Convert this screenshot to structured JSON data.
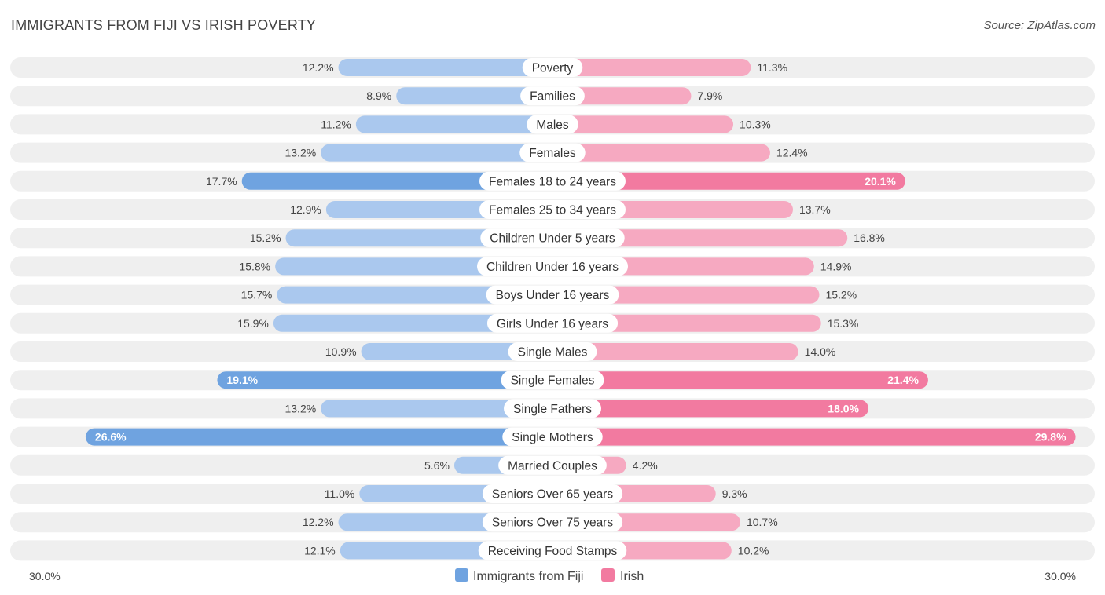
{
  "title": "IMMIGRANTS FROM FIJI VS IRISH POVERTY",
  "source": "Source: ZipAtlas.com",
  "colors": {
    "fiji": "#6fa3e0",
    "fiji_light": "#aac8ee",
    "irish": "#f27aa0",
    "irish_light": "#f6a9c1",
    "track": "#efefef"
  },
  "chart_data": {
    "type": "bar",
    "orientation": "diverging-horizontal",
    "title": "IMMIGRANTS FROM FIJI VS IRISH POVERTY",
    "categories": [
      "Poverty",
      "Families",
      "Males",
      "Females",
      "Females 18 to 24 years",
      "Females 25 to 34 years",
      "Children Under 5 years",
      "Children Under 16 years",
      "Boys Under 16 years",
      "Girls Under 16 years",
      "Single Males",
      "Single Females",
      "Single Fathers",
      "Single Mothers",
      "Married Couples",
      "Seniors Over 65 years",
      "Seniors Over 75 years",
      "Receiving Food Stamps"
    ],
    "series": [
      {
        "name": "Immigrants from Fiji",
        "side": "left",
        "values": [
          12.2,
          8.9,
          11.2,
          13.2,
          17.7,
          12.9,
          15.2,
          15.8,
          15.7,
          15.9,
          10.9,
          19.1,
          13.2,
          26.6,
          5.6,
          11.0,
          12.2,
          12.1
        ],
        "labels": [
          "12.2%",
          "8.9%",
          "11.2%",
          "13.2%",
          "17.7%",
          "12.9%",
          "15.2%",
          "15.8%",
          "15.7%",
          "15.9%",
          "10.9%",
          "19.1%",
          "13.2%",
          "26.6%",
          "5.6%",
          "11.0%",
          "12.2%",
          "12.1%"
        ]
      },
      {
        "name": "Irish",
        "side": "right",
        "values": [
          11.3,
          7.9,
          10.3,
          12.4,
          20.1,
          13.7,
          16.8,
          14.9,
          15.2,
          15.3,
          14.0,
          21.4,
          18.0,
          29.8,
          4.2,
          9.3,
          10.7,
          10.2
        ],
        "labels": [
          "11.3%",
          "7.9%",
          "10.3%",
          "12.4%",
          "20.1%",
          "13.7%",
          "16.8%",
          "14.9%",
          "15.2%",
          "15.3%",
          "14.0%",
          "21.4%",
          "18.0%",
          "29.8%",
          "4.2%",
          "9.3%",
          "10.7%",
          "10.2%"
        ]
      }
    ],
    "xlim": [
      -30,
      30
    ],
    "axis_labels": {
      "left": "30.0%",
      "right": "30.0%"
    },
    "legend": {
      "position": "bottom-center",
      "items": [
        "Immigrants from Fiji",
        "Irish"
      ]
    }
  }
}
